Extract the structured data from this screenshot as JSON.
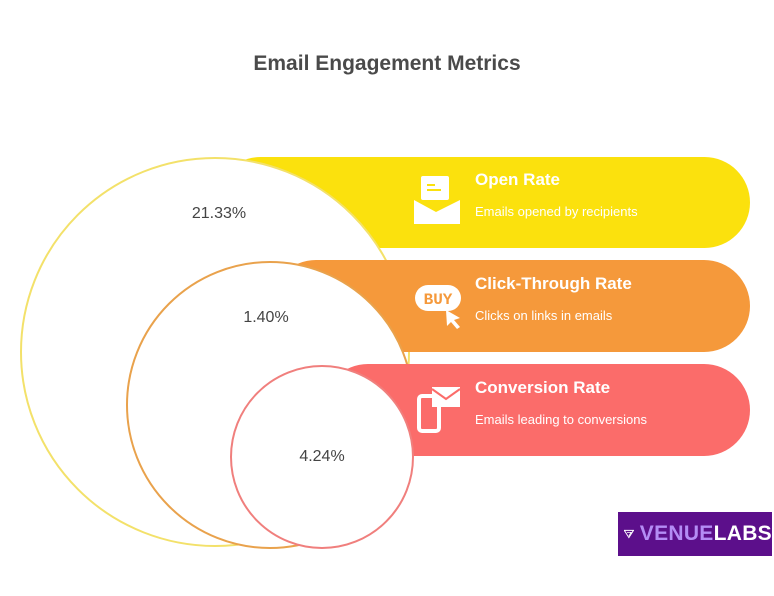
{
  "title": "Email Engagement Metrics",
  "metrics": [
    {
      "name": "Open Rate",
      "description": "Emails opened by recipients",
      "value": "21.33%",
      "color": "#fbe10d",
      "stroke": "#f3e16a",
      "icon": "envelope-letter-icon"
    },
    {
      "name": "Click-Through Rate",
      "description": "Clicks on links in emails",
      "value": "1.40%",
      "color": "#f5993b",
      "stroke": "#e9a24c",
      "icon": "buy-click-icon"
    },
    {
      "name": "Conversion Rate",
      "description": "Emails leading to conversions",
      "value": "4.24%",
      "color": "#fb6c6a",
      "stroke": "#f07f7d",
      "icon": "phone-mail-icon"
    }
  ],
  "logo": {
    "part1": "VENUE",
    "part2": "LABS"
  }
}
